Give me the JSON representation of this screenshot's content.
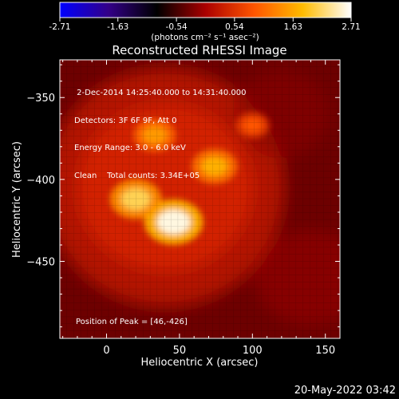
{
  "chart_data": {
    "type": "heatmap",
    "title": "Reconstructed RHESSI Image",
    "xlabel": "Heliocentric X (arcsec)",
    "ylabel": "Heliocentric Y (arcsec)",
    "xlim": [
      -32,
      160
    ],
    "ylim": [
      -497,
      -327
    ],
    "xticks": [
      0,
      50,
      100,
      150
    ],
    "yticks": [
      -350,
      -400,
      -450
    ],
    "colorbar": {
      "ticks": [
        "-2.71",
        "-1.63",
        "-0.54",
        "0.54",
        "1.63",
        "2.71"
      ],
      "range": [
        -2.71,
        2.71
      ],
      "unit_label": "(photons cm⁻² s⁻¹ asec⁻²)",
      "colormap": "rhessi-std-gamma",
      "color_stops": [
        "#0000ff",
        "#330088",
        "#000000",
        "#aa0000",
        "#ff5500",
        "#ffbb00",
        "#ffffff"
      ]
    },
    "info_lines": [
      " 2-Dec-2014 14:25:40.000 to 14:31:40.000",
      "Detectors: 3F 6F 9F, Att 0",
      "Energy Range: 3.0 - 6.0 keV",
      "Clean    Total counts: 3.34E+05"
    ],
    "peak_label": "Position of Peak = [46,-426]",
    "sources": [
      {
        "x": 46,
        "y": -426,
        "value": 2.6
      },
      {
        "x": 20,
        "y": -412,
        "value": 2.1
      },
      {
        "x": 74,
        "y": -392,
        "value": 1.7
      },
      {
        "x": 33,
        "y": -373,
        "value": 1.5
      },
      {
        "x": 100,
        "y": -367,
        "value": 0.9
      }
    ]
  },
  "date_stamp": "20-May-2022 03:42"
}
